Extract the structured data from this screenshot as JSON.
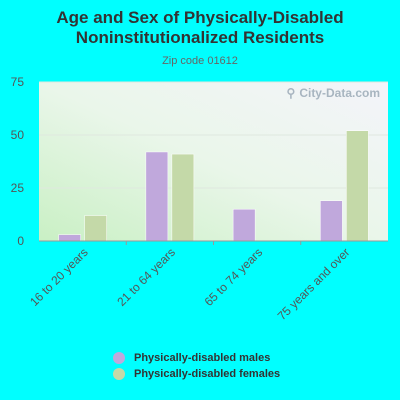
{
  "title": "Age and Sex of Physically-Disabled Noninstitutionalized Residents",
  "subtitle": "Zip code 01612",
  "watermark": "City-Data.com",
  "colors": {
    "background": "#00ffff",
    "males": "#c0a8dc",
    "females": "#c4d9a8",
    "axis": "#999999"
  },
  "chart_data": {
    "type": "bar",
    "categories": [
      "16 to 20 years",
      "21 to 64 years",
      "65 to 74 years",
      "75 years and over"
    ],
    "series": [
      {
        "name": "Physically-disabled males",
        "values": [
          3,
          42,
          15,
          19
        ]
      },
      {
        "name": "Physically-disabled females",
        "values": [
          12,
          41,
          0,
          52
        ]
      }
    ],
    "yticks": [
      0,
      25,
      50,
      75
    ],
    "ylim": [
      0,
      75
    ],
    "title": "Age and Sex of Physically-Disabled Noninstitutionalized Residents",
    "xlabel": "",
    "ylabel": "",
    "legend_position": "bottom",
    "grid": true
  }
}
